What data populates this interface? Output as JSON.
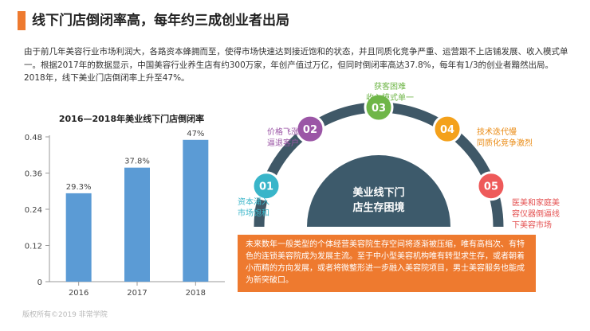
{
  "header": {
    "title": "线下门店倒闭率高，每年约三成创业者出局"
  },
  "intro": {
    "text": "由于前几年美容行业市场利润大，各路资本蜂拥而至，使得市场快速达到接近饱和的状态，并且同质化竞争严重、运营跟不上店铺发展、收入模式单一。根据2017年的数据显示，中国美容行业养生店有约300万家，年创产值过万亿，但同时倒闭率高达37.8%，每年有1/3的创业者黯然出局。2018年，线下美业门店倒闭率上升至47%。"
  },
  "chart_data": {
    "type": "bar",
    "title": "2016—2018年美业线下门店倒闭率",
    "categories": [
      "2016",
      "2017",
      "2018"
    ],
    "values": [
      0.293,
      0.378,
      0.47
    ],
    "data_labels": [
      "29.3%",
      "37.8%",
      "47%"
    ],
    "y_ticks": [
      "0",
      "0.12",
      "0.24",
      "0.36",
      "0.48"
    ],
    "ylim": [
      0,
      0.48
    ],
    "grid": false,
    "colors": {
      "bar": "#5b9bd5",
      "axis": "#9a9a9a",
      "label": "#444444"
    }
  },
  "diagram": {
    "center_label_line1": "美业线下门",
    "center_label_line2": "店生存困境",
    "center_color": "#3d5a6b",
    "arc_color": "#3f5867",
    "nodes": [
      {
        "number": "01",
        "color": "#39b5c9",
        "label_color": "#39b5c9",
        "line1": "资本涌入",
        "line2": "市场饱和"
      },
      {
        "number": "02",
        "color": "#9b56a6",
        "label_color": "#9b56a6",
        "line1": "价格飞涨",
        "line2": "逼退客户"
      },
      {
        "number": "03",
        "color": "#6fb648",
        "label_color": "#6fb648",
        "line1": "获客困难",
        "line2": "收入模式单一"
      },
      {
        "number": "04",
        "color": "#f4a11b",
        "label_color": "#ea8a12",
        "line1": "技术迭代慢",
        "line2": "同质化竞争激烈"
      },
      {
        "number": "05",
        "color": "#ee5a5a",
        "label_color": "#e45050",
        "line1": "医美和家庭美",
        "line2": "容仪器倒逼线",
        "line3": "下美容市场"
      }
    ]
  },
  "callout": {
    "text": "未来数年一般类型的个体经营美容院生存空间将逐渐被压缩，唯有高档次、有特色的连锁美容院成为发展主流。至于中小型美容机构唯有转型求生存，或者朝着小而精的方向发展，或者将微整形进一步融入美容院项目，男士美容服务也能成为新突破口。",
    "background": "#ee7a2f"
  },
  "footer": {
    "text": "版权所有©2019 非常学院"
  }
}
